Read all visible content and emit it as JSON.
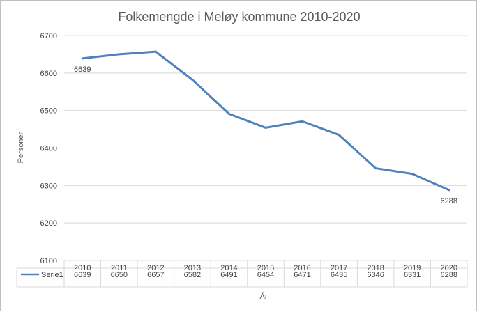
{
  "chart_data": {
    "type": "line",
    "title": "Folkemengde i Meløy kommune 2010-2020",
    "xlabel": "År",
    "ylabel": "Personer",
    "ylim": [
      6100,
      6700
    ],
    "yticks": [
      6100,
      6200,
      6300,
      6400,
      6500,
      6600,
      6700
    ],
    "categories": [
      "2010",
      "2011",
      "2012",
      "2013",
      "2014",
      "2015",
      "2016",
      "2017",
      "2018",
      "2019",
      "2020"
    ],
    "series": [
      {
        "name": "Serie1",
        "color": "#4f81bd",
        "values": [
          6639,
          6650,
          6657,
          6582,
          6491,
          6454,
          6471,
          6435,
          6346,
          6331,
          6288
        ]
      }
    ],
    "data_labels": [
      {
        "index": 0,
        "text": "6639"
      },
      {
        "index": 10,
        "text": "6288"
      }
    ],
    "grid": true,
    "legend": "data-table"
  }
}
